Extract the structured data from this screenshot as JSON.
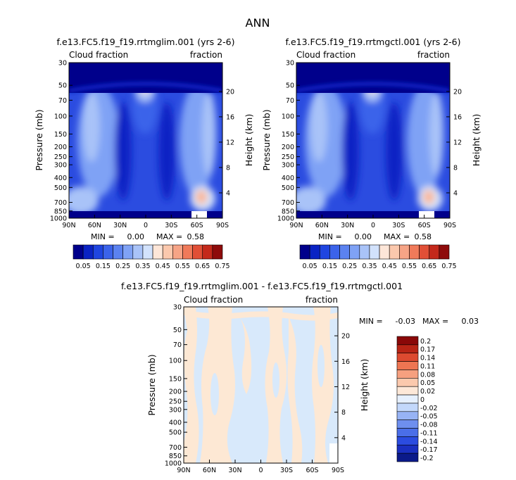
{
  "page_title": "ANN",
  "colors": {
    "ramp": [
      "#00008b",
      "#0a23c4",
      "#1f45e0",
      "#3b63ea",
      "#5b82f0",
      "#7fa2f5",
      "#a9c3f8",
      "#d2e2fc",
      "#fde6d8",
      "#fbc8ad",
      "#f6a486",
      "#f07a5a",
      "#e14f36",
      "#c4291b",
      "#8e0b0b"
    ],
    "diff_ramp": [
      "#0b1a8a",
      "#1a2fc0",
      "#2b4ce0",
      "#4a6ee8",
      "#6e8fef",
      "#97b3f5",
      "#c3d8fb",
      "#e6f0fe",
      "#fde8d8",
      "#fbc9ad",
      "#f6a07f",
      "#ee7552",
      "#dd4a30",
      "#b82415",
      "#8a0808"
    ],
    "diff_pos": "#fde8d4",
    "diff_neg": "#d8e9fb"
  },
  "chart_data": [
    {
      "type": "heatmap",
      "title": "f.e13.FC5.f19_f19.rrtmglim.001 (yrs 2-6)",
      "left_label": "Cloud fraction",
      "right_label": "fraction",
      "xlabel": "",
      "ylabel": "Pressure (mb)",
      "y2label": "Height (km)",
      "x_ticks": [
        "90N",
        "60N",
        "30N",
        "0",
        "30S",
        "60S",
        "90S"
      ],
      "y_ticks": [
        30,
        50,
        70,
        100,
        150,
        200,
        250,
        300,
        400,
        500,
        700,
        850,
        1000
      ],
      "y2_ticks": [
        4,
        8,
        12,
        16,
        20
      ],
      "stats": {
        "min_label": "MIN =",
        "min": "0.00",
        "max_label": "MAX =",
        "max": "0.58"
      },
      "colorbar": {
        "labels": [
          "0.05",
          "0.15",
          "0.25",
          "0.35",
          "0.45",
          "0.55",
          "0.65",
          "0.75"
        ]
      }
    },
    {
      "type": "heatmap",
      "title": "f.e13.FC5.f19_f19.rrtmgctl.001 (yrs 2-6)",
      "left_label": "Cloud fraction",
      "right_label": "fraction",
      "xlabel": "",
      "ylabel": "Pressure (mb)",
      "y2label": "Height (km)",
      "x_ticks": [
        "90N",
        "60N",
        "30N",
        "0",
        "30S",
        "60S",
        "90S"
      ],
      "y_ticks": [
        30,
        50,
        70,
        100,
        150,
        200,
        250,
        300,
        400,
        500,
        700,
        850,
        1000
      ],
      "y2_ticks": [
        4,
        8,
        12,
        16,
        20
      ],
      "stats": {
        "min_label": "MIN =",
        "min": "0.00",
        "max_label": "MAX =",
        "max": "0.58"
      },
      "colorbar": {
        "labels": [
          "0.05",
          "0.15",
          "0.25",
          "0.35",
          "0.45",
          "0.55",
          "0.65",
          "0.75"
        ]
      }
    },
    {
      "type": "heatmap",
      "title": "f.e13.FC5.f19_f19.rrtmglim.001 - f.e13.FC5.f19_f19.rrtmgctl.001",
      "left_label": "Cloud fraction",
      "right_label": "fraction",
      "xlabel": "",
      "ylabel": "Pressure (mb)",
      "y2label": "Height (km)",
      "x_ticks": [
        "90N",
        "60N",
        "30N",
        "0",
        "30S",
        "60S",
        "90S"
      ],
      "y_ticks": [
        30,
        50,
        70,
        100,
        150,
        200,
        250,
        300,
        400,
        500,
        700,
        850,
        1000
      ],
      "y2_ticks": [
        4,
        8,
        12,
        16,
        20
      ],
      "stats": {
        "min_label": "MIN =",
        "min": "-0.03",
        "max_label": "MAX =",
        "max": "0.03"
      },
      "colorbar": {
        "labels": [
          "0.2",
          "0.17",
          "0.14",
          "0.11",
          "0.08",
          "0.05",
          "0.02",
          "0",
          "-0.02",
          "-0.05",
          "-0.08",
          "-0.11",
          "-0.14",
          "-0.17",
          "-0.2"
        ]
      }
    }
  ]
}
